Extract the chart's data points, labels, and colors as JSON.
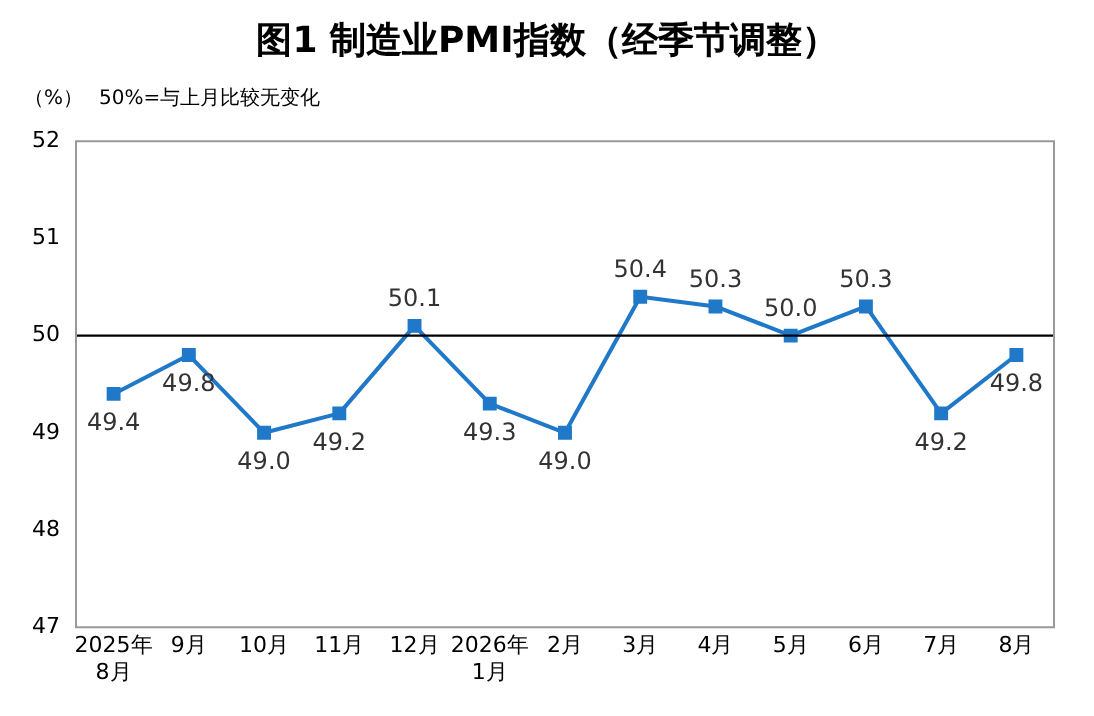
{
  "chart_data": {
    "type": "line",
    "title": "图1  制造业PMI指数（经季节调整）",
    "ylabel": "（%）",
    "annotations": [
      "50%=与上月比较无变化"
    ],
    "categories": [
      "2025年\n8月",
      "9月",
      "10月",
      "11月",
      "12月",
      "2026年\n1月",
      "2月",
      "3月",
      "4月",
      "5月",
      "6月",
      "7月",
      "8月"
    ],
    "series": [
      {
        "color": "#1f78c8",
        "values": [
          49.4,
          49.8,
          49.0,
          49.2,
          50.1,
          49.3,
          49.0,
          50.4,
          50.3,
          50.0,
          50.3,
          49.2,
          49.8
        ],
        "value_labels": [
          "49.4",
          "49.8",
          "49.0",
          "49.2",
          "50.1",
          "49.3",
          "49.0",
          "50.4",
          "50.3",
          "50.0",
          "50.3",
          "49.2",
          "49.8"
        ]
      }
    ],
    "ylim": [
      47,
      52
    ],
    "yticks": [
      47,
      48,
      49,
      50,
      51,
      52
    ],
    "ref_lines": [
      {
        "axis": "y",
        "value": 50,
        "color": "#000000"
      }
    ],
    "marker": "square",
    "line_style": "solid",
    "grid": false,
    "legend": false
  }
}
